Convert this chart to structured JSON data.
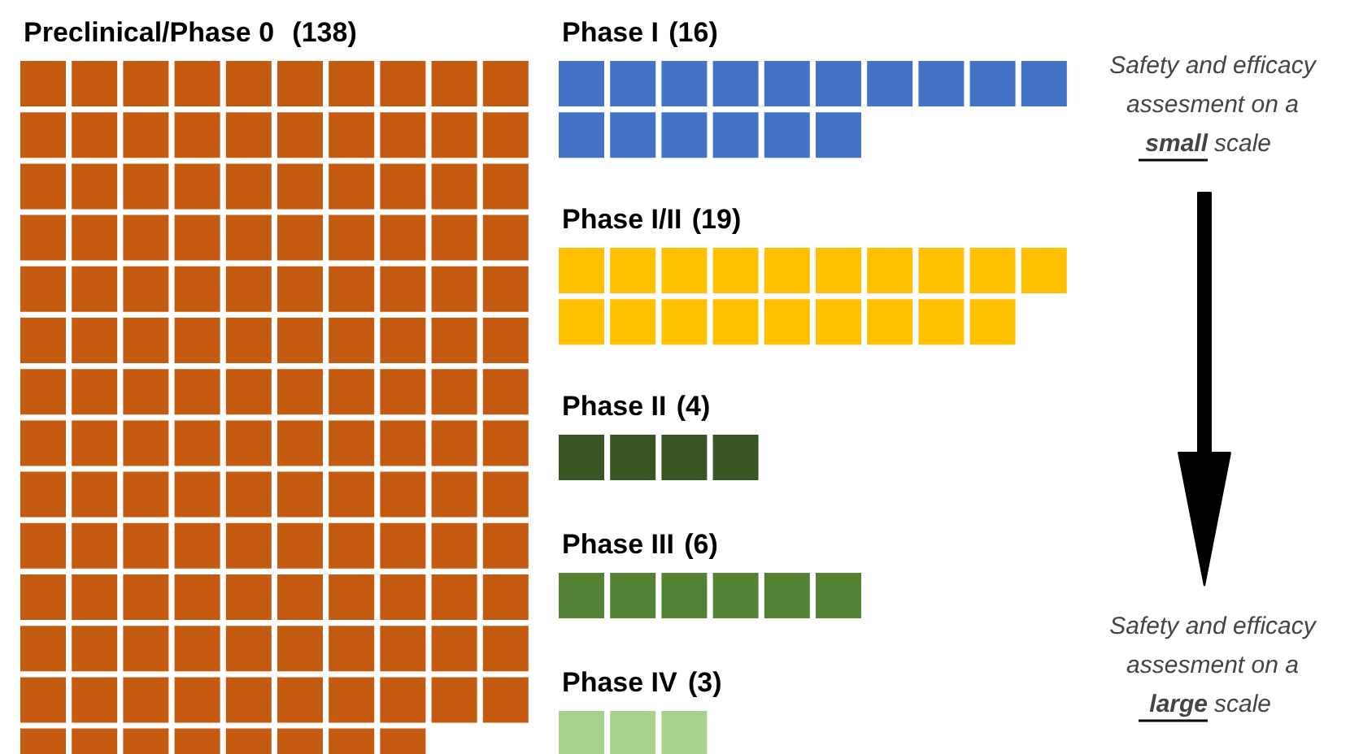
{
  "chart_data": {
    "type": "other",
    "categories": [
      "Preclinical/Phase 0",
      "Phase I",
      "Phase I/II",
      "Phase II",
      "Phase III",
      "Phase IV"
    ],
    "values": [
      138,
      16,
      19,
      4,
      6,
      3
    ],
    "value_labels": [
      "(138)",
      "(16)",
      "(19)",
      "(4)",
      "(6)",
      "(3)"
    ],
    "colors": [
      "#c55a11",
      "#4472c4",
      "#ffc000",
      "#375623",
      "#548235",
      "#a9d18e"
    ],
    "annotations": [
      "Safety and efficacy assesment on a small scale",
      "Safety and efficacy assesment on a large scale"
    ]
  }
}
